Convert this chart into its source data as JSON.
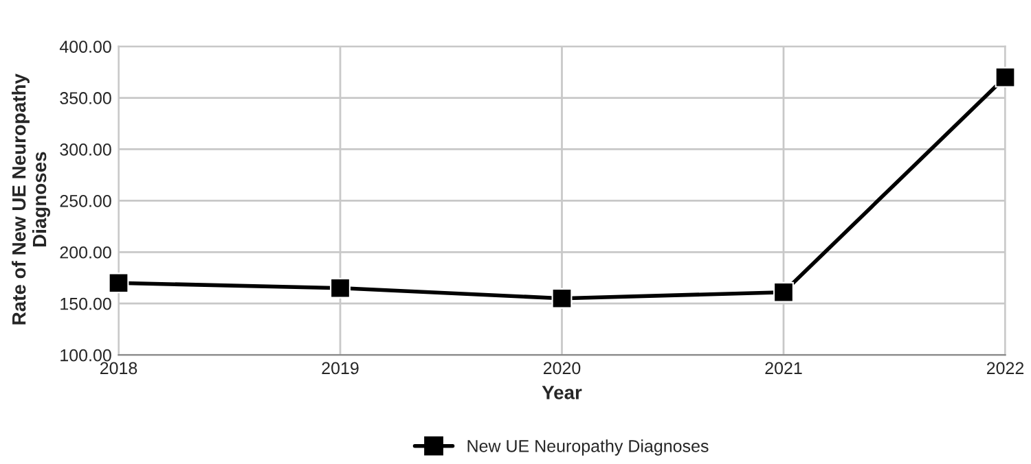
{
  "chart_data": {
    "type": "line",
    "xlabel": "Year",
    "ylabel": "Rate of New UE Neuropathy Diagnoses",
    "x": [
      2018,
      2019,
      2020,
      2021,
      2022
    ],
    "series": [
      {
        "name": "New UE Neuropathy Diagnoses",
        "color": "#000000",
        "values": [
          170,
          165,
          155,
          161,
          370
        ]
      }
    ],
    "xlim": [
      2018,
      2022
    ],
    "xticks": [
      2018,
      2019,
      2020,
      2021,
      2022
    ],
    "ylim": [
      100,
      400
    ],
    "yticks": [
      {
        "value": 100,
        "label": "100.00"
      },
      {
        "value": 150,
        "label": "150.00"
      },
      {
        "value": 200,
        "label": "200.00"
      },
      {
        "value": 250,
        "label": "250.00"
      },
      {
        "value": 300,
        "label": "300.00"
      },
      {
        "value": 350,
        "label": "350.00"
      },
      {
        "value": 400,
        "label": "400.00"
      }
    ],
    "grid": true,
    "legend": "bottom",
    "marker": "square",
    "line_style": "solid"
  }
}
